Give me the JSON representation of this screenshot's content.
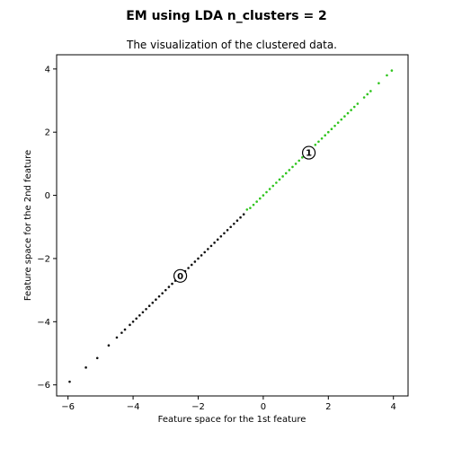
{
  "figure": {
    "suptitle": "EM using LDA n_clusters = 2"
  },
  "chart_data": {
    "type": "scatter",
    "title": "The visualization of the clustered data.",
    "xlabel": "Feature space for the 1st feature",
    "ylabel": "Feature space for the 2nd feature",
    "xlim": [
      -6.35,
      4.45
    ],
    "ylim": [
      -6.35,
      4.45
    ],
    "xticks": [
      -6,
      -4,
      -2,
      0,
      2,
      4
    ],
    "yticks": [
      -6,
      -4,
      -2,
      0,
      2,
      4
    ],
    "xtick_labels": [
      "−6",
      "−4",
      "−2",
      "0",
      "2",
      "4"
    ],
    "ytick_labels": [
      "−6",
      "−4",
      "−2",
      "0",
      "2",
      "4"
    ],
    "grid": false,
    "legend": "none",
    "series": [
      {
        "color": "#111111",
        "points": [
          [
            -5.95,
            -5.9
          ],
          [
            -5.45,
            -5.45
          ],
          [
            -5.1,
            -5.15
          ],
          [
            -4.75,
            -4.75
          ],
          [
            -4.5,
            -4.5
          ],
          [
            -4.35,
            -4.35
          ],
          [
            -4.25,
            -4.25
          ],
          [
            -4.1,
            -4.1
          ],
          [
            -4.0,
            -4.0
          ],
          [
            -3.9,
            -3.9
          ],
          [
            -3.8,
            -3.8
          ],
          [
            -3.7,
            -3.7
          ],
          [
            -3.6,
            -3.6
          ],
          [
            -3.5,
            -3.5
          ],
          [
            -3.4,
            -3.4
          ],
          [
            -3.3,
            -3.3
          ],
          [
            -3.2,
            -3.2
          ],
          [
            -3.1,
            -3.1
          ],
          [
            -3.0,
            -3.0
          ],
          [
            -2.9,
            -2.9
          ],
          [
            -2.8,
            -2.8
          ],
          [
            -2.7,
            -2.7
          ],
          [
            -2.6,
            -2.6
          ],
          [
            -2.5,
            -2.5
          ],
          [
            -2.4,
            -2.4
          ],
          [
            -2.3,
            -2.3
          ],
          [
            -2.2,
            -2.2
          ],
          [
            -2.1,
            -2.1
          ],
          [
            -2.0,
            -2.0
          ],
          [
            -1.9,
            -1.9
          ],
          [
            -1.8,
            -1.8
          ],
          [
            -1.7,
            -1.7
          ],
          [
            -1.6,
            -1.6
          ],
          [
            -1.5,
            -1.5
          ],
          [
            -1.4,
            -1.4
          ],
          [
            -1.3,
            -1.3
          ],
          [
            -1.2,
            -1.2
          ],
          [
            -1.1,
            -1.1
          ],
          [
            -1.0,
            -1.0
          ],
          [
            -0.9,
            -0.9
          ],
          [
            -0.8,
            -0.8
          ],
          [
            -0.7,
            -0.7
          ],
          [
            -0.6,
            -0.6
          ]
        ]
      },
      {
        "color": "#2ec41c",
        "points": [
          [
            -0.5,
            -0.45
          ],
          [
            -0.4,
            -0.4
          ],
          [
            -0.3,
            -0.3
          ],
          [
            -0.2,
            -0.2
          ],
          [
            -0.1,
            -0.1
          ],
          [
            0.0,
            0.0
          ],
          [
            0.1,
            0.1
          ],
          [
            0.2,
            0.2
          ],
          [
            0.3,
            0.3
          ],
          [
            0.4,
            0.4
          ],
          [
            0.5,
            0.5
          ],
          [
            0.6,
            0.6
          ],
          [
            0.7,
            0.7
          ],
          [
            0.8,
            0.8
          ],
          [
            0.9,
            0.9
          ],
          [
            1.0,
            1.0
          ],
          [
            1.1,
            1.1
          ],
          [
            1.2,
            1.2
          ],
          [
            1.3,
            1.3
          ],
          [
            1.4,
            1.4
          ],
          [
            1.5,
            1.5
          ],
          [
            1.6,
            1.6
          ],
          [
            1.7,
            1.7
          ],
          [
            1.8,
            1.8
          ],
          [
            1.9,
            1.9
          ],
          [
            2.0,
            2.0
          ],
          [
            2.1,
            2.1
          ],
          [
            2.2,
            2.2
          ],
          [
            2.3,
            2.3
          ],
          [
            2.4,
            2.4
          ],
          [
            2.5,
            2.5
          ],
          [
            2.6,
            2.6
          ],
          [
            2.7,
            2.7
          ],
          [
            2.8,
            2.8
          ],
          [
            2.9,
            2.9
          ],
          [
            3.1,
            3.1
          ],
          [
            3.2,
            3.2
          ],
          [
            3.3,
            3.3
          ],
          [
            3.55,
            3.55
          ],
          [
            3.8,
            3.8
          ],
          [
            3.95,
            3.95
          ]
        ]
      }
    ],
    "centers": [
      {
        "label": "0",
        "x": -2.55,
        "y": -2.55
      },
      {
        "label": "1",
        "x": 1.4,
        "y": 1.35
      }
    ]
  }
}
